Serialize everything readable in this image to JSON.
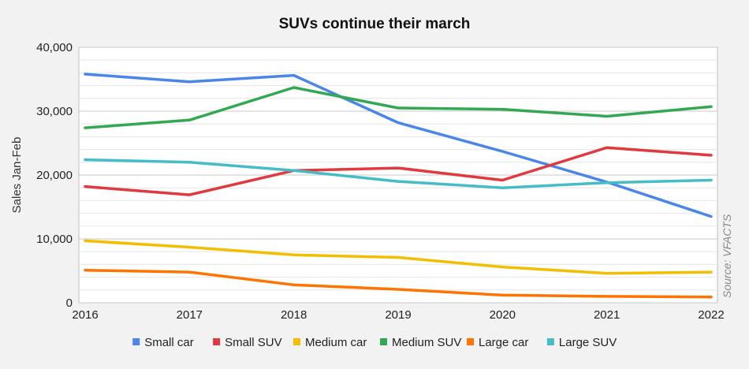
{
  "chart_data": {
    "type": "line",
    "title": "SUVs continue their march",
    "xlabel": "",
    "ylabel": "Sales Jan-Feb",
    "source": "Source: VFACTS",
    "x": [
      2016,
      2017,
      2018,
      2019,
      2020,
      2021,
      2022
    ],
    "x_tick_labels": [
      "2016",
      "2017",
      "2018",
      "2019",
      "2020",
      "2021",
      "2022"
    ],
    "ylim": [
      0,
      40000
    ],
    "y_ticks": [
      0,
      10000,
      20000,
      30000,
      40000
    ],
    "y_tick_labels": [
      "0",
      "10,000",
      "20,000",
      "30,000",
      "40,000"
    ],
    "grid": true,
    "legend_position": "bottom",
    "series": [
      {
        "name": "Small car",
        "color": "#4a86e8",
        "values": [
          35800,
          34600,
          35600,
          28200,
          23700,
          18900,
          13500
        ]
      },
      {
        "name": "Small SUV",
        "color": "#e0393e",
        "values": [
          18200,
          16900,
          20700,
          21100,
          19200,
          24300,
          23100
        ]
      },
      {
        "name": "Medium car",
        "color": "#f5bd00",
        "values": [
          9700,
          8700,
          7500,
          7100,
          5600,
          4600,
          4800
        ]
      },
      {
        "name": "Medium SUV",
        "color": "#33a852",
        "values": [
          27400,
          28600,
          33700,
          30500,
          30300,
          29200,
          30700
        ]
      },
      {
        "name": "Large car",
        "color": "#ff7300",
        "values": [
          5100,
          4800,
          2800,
          2100,
          1200,
          1000,
          900
        ]
      },
      {
        "name": "Large SUV",
        "color": "#46bdc6",
        "values": [
          22400,
          22000,
          20700,
          19000,
          18000,
          18800,
          19200
        ]
      }
    ]
  }
}
